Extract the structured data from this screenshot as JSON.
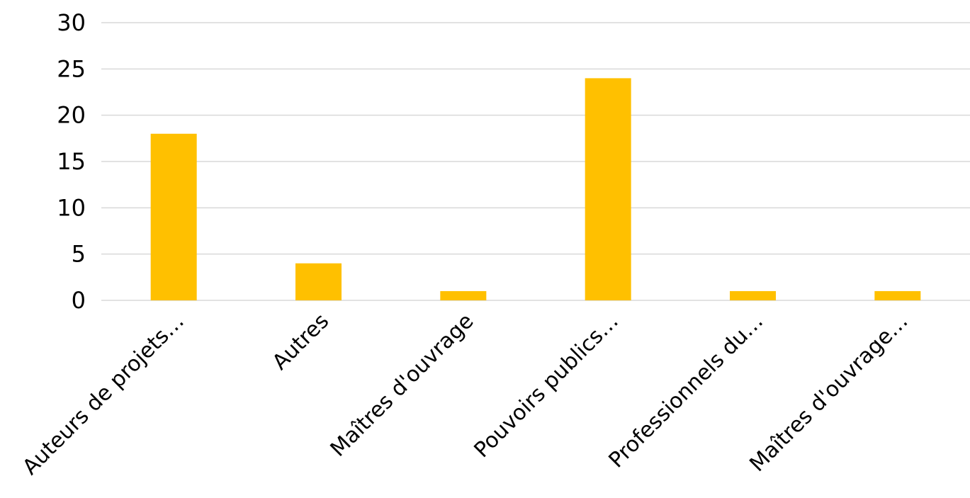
{
  "chart_data": {
    "type": "bar",
    "categories": [
      "Auteurs de projets…",
      "Autres",
      "Maîtres d'ouvrage",
      "Pouvoirs publics…",
      "Professionnels du…",
      "Maîtres d'ouvrage…"
    ],
    "values": [
      18,
      4,
      1,
      24,
      1,
      1
    ],
    "ylim": [
      0,
      30
    ],
    "yticks": [
      0,
      5,
      10,
      15,
      20,
      25,
      30
    ],
    "grid": true,
    "legend": "none",
    "bar_color": "#FFC000",
    "grid_color": "#D9D9D9"
  }
}
